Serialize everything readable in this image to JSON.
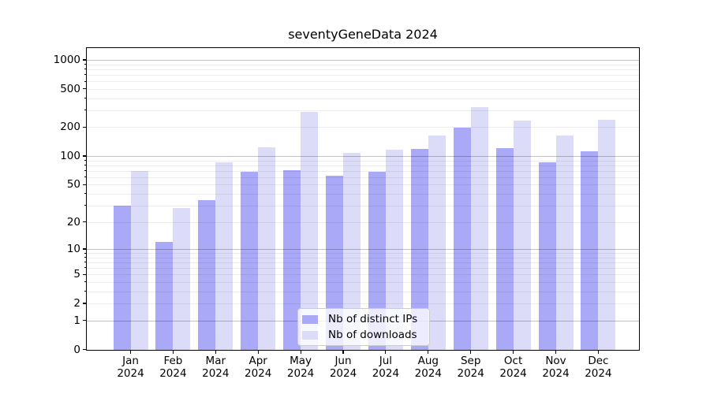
{
  "title": "seventyGeneData 2024",
  "chart_data": {
    "type": "bar",
    "title": "seventyGeneData 2024",
    "categories": [
      "Jan 2024",
      "Feb 2024",
      "Mar 2024",
      "Apr 2024",
      "May 2024",
      "Jun 2024",
      "Jul 2024",
      "Aug 2024",
      "Sep 2024",
      "Oct 2024",
      "Nov 2024",
      "Dec 2024"
    ],
    "series": [
      {
        "name": "Nb of distinct IPs",
        "color": "#a9a9f8",
        "values": [
          30,
          12,
          34,
          68,
          71,
          62,
          68,
          118,
          197,
          122,
          86,
          113
        ]
      },
      {
        "name": "Nb of downloads",
        "color": "#dcdcf9",
        "values": [
          70,
          28,
          86,
          124,
          290,
          108,
          116,
          165,
          323,
          236,
          165,
          240
        ]
      }
    ],
    "yscale": "log(1+x)",
    "ytick_values": [
      0,
      1,
      2,
      5,
      10,
      20,
      50,
      100,
      200,
      500,
      1000
    ],
    "ytick_labels": [
      "0",
      "1",
      "2",
      "5",
      "10",
      "20",
      "50",
      "100",
      "200",
      "500",
      "1000"
    ],
    "ylim": [
      0,
      1325
    ],
    "grid": "horizontal major+minor, drawn over bars",
    "legend_position": "lower center inside plot, framed box"
  },
  "colors": {
    "bar_ips": "#a9a9f8",
    "bar_downloads": "#dcdcf9",
    "grid_major": "rgba(0,0,0,0.24)",
    "grid_minor": "rgba(0,0,0,0.07)",
    "spine": "#000000",
    "text": "#000000",
    "legend_border": "#cccccc",
    "legend_bg": "rgba(255,255,255,0.78)",
    "background": "#ffffff"
  }
}
